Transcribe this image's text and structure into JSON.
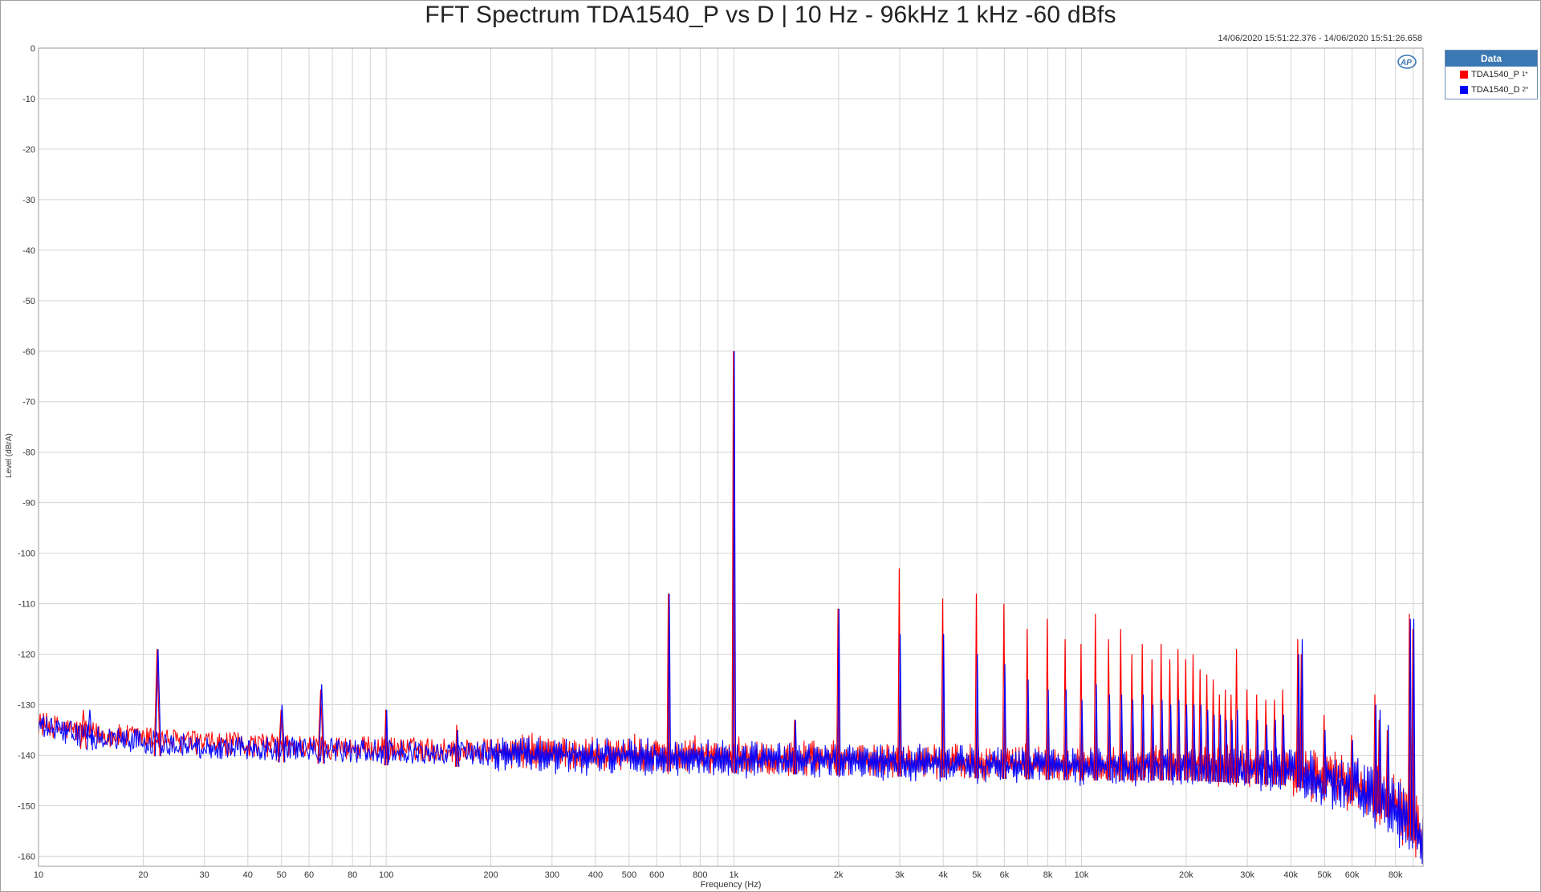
{
  "window": {
    "title": "FFT Spectrum TDA1540_P vs D | 10 Hz - 96kHz  1 kHz -60 dBfs",
    "timestamp": "14/06/2020 15:51:22.376 - 14/06/2020 15:51:26.658",
    "logo_text": "AP"
  },
  "legend": {
    "header": "Data",
    "items": [
      {
        "label": "TDA1540_P",
        "index": "1*",
        "color": "#ff0000"
      },
      {
        "label": "TDA1540_D",
        "index": "2*",
        "color": "#0000ff"
      }
    ]
  },
  "chart_data": {
    "type": "line",
    "title": "FFT Spectrum TDA1540_P vs D | 10 Hz - 96kHz  1 kHz -60 dBfs",
    "xlabel": "Frequency (Hz)",
    "ylabel": "Level (dBrA)",
    "xscale": "log",
    "xlim": [
      10,
      96000
    ],
    "ylim": [
      -162,
      0
    ],
    "grid": true,
    "legend_position": "outside-top-right",
    "x_ticks": [
      {
        "value": 10,
        "label": "10"
      },
      {
        "value": 20,
        "label": "20"
      },
      {
        "value": 30,
        "label": "30"
      },
      {
        "value": 40,
        "label": "40"
      },
      {
        "value": 50,
        "label": "50"
      },
      {
        "value": 60,
        "label": "60"
      },
      {
        "value": 80,
        "label": "80"
      },
      {
        "value": 100,
        "label": "100"
      },
      {
        "value": 200,
        "label": "200"
      },
      {
        "value": 300,
        "label": "300"
      },
      {
        "value": 400,
        "label": "400"
      },
      {
        "value": 500,
        "label": "500"
      },
      {
        "value": 600,
        "label": "600"
      },
      {
        "value": 800,
        "label": "800"
      },
      {
        "value": 1000,
        "label": "1k"
      },
      {
        "value": 2000,
        "label": "2k"
      },
      {
        "value": 3000,
        "label": "3k"
      },
      {
        "value": 4000,
        "label": "4k"
      },
      {
        "value": 5000,
        "label": "5k"
      },
      {
        "value": 6000,
        "label": "6k"
      },
      {
        "value": 8000,
        "label": "8k"
      },
      {
        "value": 10000,
        "label": "10k"
      },
      {
        "value": 20000,
        "label": "20k"
      },
      {
        "value": 30000,
        "label": "30k"
      },
      {
        "value": 40000,
        "label": "40k"
      },
      {
        "value": 50000,
        "label": "50k"
      },
      {
        "value": 60000,
        "label": "60k"
      },
      {
        "value": 80000,
        "label": "80k"
      }
    ],
    "x_minor_grid": [
      70,
      90,
      700,
      900,
      7000,
      9000,
      70000,
      90000
    ],
    "y_ticks": [
      0,
      -10,
      -20,
      -30,
      -40,
      -50,
      -60,
      -70,
      -80,
      -90,
      -100,
      -110,
      -120,
      -130,
      -140,
      -150,
      -160
    ],
    "noise_floor": {
      "points": [
        [
          10,
          -134
        ],
        [
          14,
          -136
        ],
        [
          30,
          -138
        ],
        [
          100,
          -139
        ],
        [
          500,
          -140
        ],
        [
          2000,
          -141
        ],
        [
          10000,
          -142
        ],
        [
          20000,
          -142
        ],
        [
          40000,
          -143
        ],
        [
          60000,
          -146
        ],
        [
          80000,
          -150
        ],
        [
          96000,
          -156
        ]
      ],
      "spread_db": 4
    },
    "series": [
      {
        "name": "TDA1540_P",
        "color": "#ff0000",
        "peaks": [
          [
            13.5,
            -131
          ],
          [
            22,
            -119
          ],
          [
            50,
            -131
          ],
          [
            65,
            -127
          ],
          [
            100,
            -131
          ],
          [
            160,
            -134
          ],
          [
            650,
            -108
          ],
          [
            1000,
            -60
          ],
          [
            1500,
            -133
          ],
          [
            2000,
            -111
          ],
          [
            3000,
            -103
          ],
          [
            4000,
            -109
          ],
          [
            5000,
            -108
          ],
          [
            6000,
            -110
          ],
          [
            7000,
            -115
          ],
          [
            8000,
            -113
          ],
          [
            9000,
            -117
          ],
          [
            10000,
            -118
          ],
          [
            11000,
            -112
          ],
          [
            12000,
            -117
          ],
          [
            13000,
            -115
          ],
          [
            14000,
            -120
          ],
          [
            15000,
            -118
          ],
          [
            16000,
            -121
          ],
          [
            17000,
            -118
          ],
          [
            18000,
            -121
          ],
          [
            19000,
            -119
          ],
          [
            20000,
            -121
          ],
          [
            21000,
            -120
          ],
          [
            22000,
            -123
          ],
          [
            23000,
            -124
          ],
          [
            24000,
            -125
          ],
          [
            25000,
            -128
          ],
          [
            26000,
            -127
          ],
          [
            27000,
            -128
          ],
          [
            28000,
            -119
          ],
          [
            30000,
            -127
          ],
          [
            32000,
            -128
          ],
          [
            34000,
            -129
          ],
          [
            36000,
            -129
          ],
          [
            38000,
            -127
          ],
          [
            42000,
            -117
          ],
          [
            43000,
            -120
          ],
          [
            50000,
            -132
          ],
          [
            60000,
            -136
          ],
          [
            70000,
            -128
          ],
          [
            72000,
            -133
          ],
          [
            76000,
            -135
          ],
          [
            88000,
            -112
          ],
          [
            90000,
            -115
          ]
        ]
      },
      {
        "name": "TDA1540_D",
        "color": "#0000ff",
        "peaks": [
          [
            14,
            -131
          ],
          [
            22,
            -119
          ],
          [
            50,
            -130
          ],
          [
            65,
            -126
          ],
          [
            100,
            -131
          ],
          [
            160,
            -135
          ],
          [
            650,
            -108
          ],
          [
            1000,
            -60
          ],
          [
            1500,
            -133
          ],
          [
            2000,
            -111
          ],
          [
            3000,
            -116
          ],
          [
            4000,
            -116
          ],
          [
            5000,
            -120
          ],
          [
            6000,
            -122
          ],
          [
            7000,
            -125
          ],
          [
            8000,
            -127
          ],
          [
            9000,
            -127
          ],
          [
            10000,
            -129
          ],
          [
            11000,
            -126
          ],
          [
            12000,
            -128
          ],
          [
            13000,
            -128
          ],
          [
            14000,
            -129
          ],
          [
            15000,
            -128
          ],
          [
            16000,
            -130
          ],
          [
            17000,
            -129
          ],
          [
            18000,
            -130
          ],
          [
            19000,
            -129
          ],
          [
            20000,
            -130
          ],
          [
            21000,
            -130
          ],
          [
            22000,
            -130
          ],
          [
            23000,
            -131
          ],
          [
            24000,
            -132
          ],
          [
            25000,
            -132
          ],
          [
            26000,
            -133
          ],
          [
            27000,
            -133
          ],
          [
            28000,
            -131
          ],
          [
            30000,
            -133
          ],
          [
            32000,
            -133
          ],
          [
            34000,
            -134
          ],
          [
            36000,
            -133
          ],
          [
            38000,
            -132
          ],
          [
            42000,
            -120
          ],
          [
            43000,
            -117
          ],
          [
            50000,
            -135
          ],
          [
            60000,
            -137
          ],
          [
            70000,
            -130
          ],
          [
            72000,
            -131
          ],
          [
            76000,
            -134
          ],
          [
            88000,
            -113
          ],
          [
            90000,
            -113
          ]
        ]
      }
    ]
  }
}
